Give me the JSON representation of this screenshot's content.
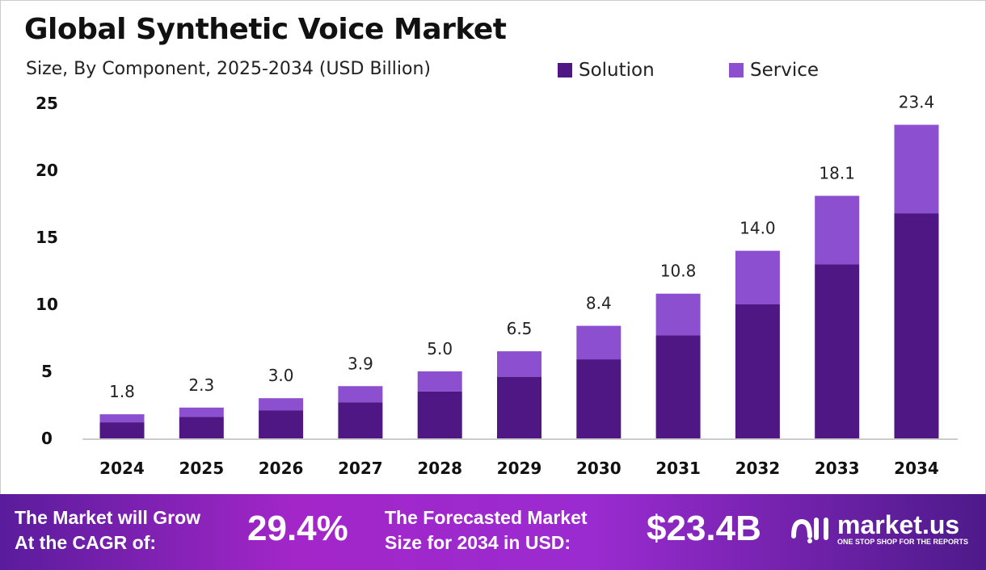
{
  "colors": {
    "solution": "#4e1783",
    "service": "#8b4fcf",
    "banner_start": "#5a1c9c",
    "banner_mid": "#a326c9"
  },
  "chart_data": {
    "type": "bar",
    "stacked": true,
    "title": "Global Synthetic Voice Market",
    "subtitle": "Size, By Component, 2025-2034 (USD Billion)",
    "categories": [
      "2024",
      "2025",
      "2026",
      "2027",
      "2028",
      "2029",
      "2030",
      "2031",
      "2032",
      "2033",
      "2034"
    ],
    "series": [
      {
        "name": "Solution",
        "values": [
          1.2,
          1.6,
          2.1,
          2.7,
          3.5,
          4.6,
          5.9,
          7.7,
          10.0,
          13.0,
          16.8
        ]
      },
      {
        "name": "Service",
        "values": [
          0.6,
          0.7,
          0.9,
          1.2,
          1.5,
          1.9,
          2.5,
          3.1,
          4.0,
          5.1,
          6.6
        ]
      }
    ],
    "totals": [
      "1.8",
      "2.3",
      "3.0",
      "3.9",
      "5.0",
      "6.5",
      "8.4",
      "10.8",
      "14.0",
      "18.1",
      "23.4"
    ],
    "ylim": [
      0,
      25
    ],
    "yticks": [
      "0",
      "5",
      "10",
      "15",
      "20",
      "25"
    ],
    "grid": false,
    "legend": "top-right"
  },
  "banner": {
    "cagr_label_1": "The Market will Grow",
    "cagr_label_2": "At the CAGR of:",
    "cagr_value": "29.4%",
    "forecast_label_1": "The Forecasted Market",
    "forecast_label_2": "Size for 2034 in USD:",
    "forecast_value": "$23.4B",
    "logo_name": "market.us",
    "logo_tagline": "ONE STOP SHOP FOR THE REPORTS"
  }
}
